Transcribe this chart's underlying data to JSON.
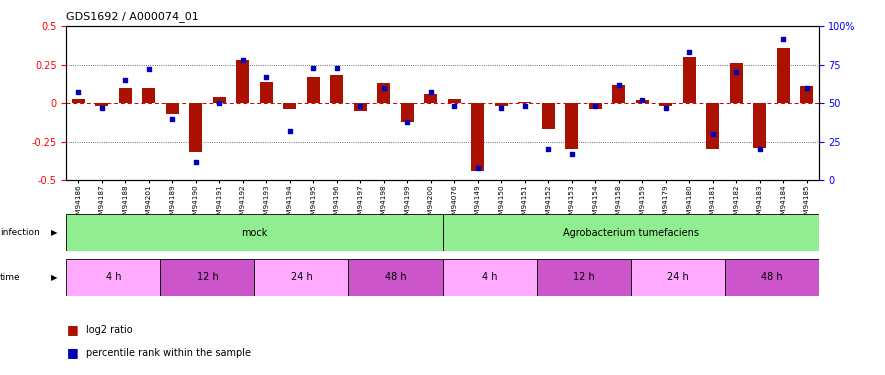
{
  "title": "GDS1692 / A000074_01",
  "samples": [
    "GSM94186",
    "GSM94187",
    "GSM94188",
    "GSM94201",
    "GSM94189",
    "GSM94190",
    "GSM94191",
    "GSM94192",
    "GSM94193",
    "GSM94194",
    "GSM94195",
    "GSM94196",
    "GSM94197",
    "GSM94198",
    "GSM94199",
    "GSM94200",
    "GSM94076",
    "GSM94149",
    "GSM94150",
    "GSM94151",
    "GSM94152",
    "GSM94153",
    "GSM94154",
    "GSM94158",
    "GSM94159",
    "GSM94179",
    "GSM94180",
    "GSM94181",
    "GSM94182",
    "GSM94183",
    "GSM94184",
    "GSM94185"
  ],
  "log2_ratio": [
    0.03,
    -0.02,
    0.1,
    0.1,
    -0.07,
    -0.32,
    0.04,
    0.28,
    0.14,
    -0.04,
    0.17,
    0.18,
    -0.05,
    0.13,
    -0.12,
    0.06,
    0.03,
    -0.44,
    -0.02,
    0.01,
    -0.17,
    -0.3,
    -0.04,
    0.12,
    0.02,
    -0.02,
    0.3,
    -0.3,
    0.26,
    -0.29,
    0.36,
    0.11
  ],
  "percentile_rank": [
    57,
    47,
    65,
    72,
    40,
    12,
    50,
    78,
    67,
    32,
    73,
    73,
    48,
    60,
    38,
    57,
    48,
    8,
    47,
    48,
    20,
    17,
    48,
    62,
    52,
    47,
    83,
    30,
    70,
    20,
    92,
    60
  ],
  "infection_groups": [
    {
      "label": "mock",
      "start": 0,
      "end": 15,
      "color": "#90ee90"
    },
    {
      "label": "Agrobacterium tumefaciens",
      "start": 16,
      "end": 31,
      "color": "#90ee90"
    }
  ],
  "time_groups": [
    {
      "label": "4 h",
      "start": 0,
      "end": 3,
      "color": "#ffaaff"
    },
    {
      "label": "12 h",
      "start": 4,
      "end": 7,
      "color": "#cc55cc"
    },
    {
      "label": "24 h",
      "start": 8,
      "end": 11,
      "color": "#ffaaff"
    },
    {
      "label": "48 h",
      "start": 12,
      "end": 15,
      "color": "#cc55cc"
    },
    {
      "label": "4 h",
      "start": 16,
      "end": 19,
      "color": "#ffaaff"
    },
    {
      "label": "12 h",
      "start": 20,
      "end": 23,
      "color": "#cc55cc"
    },
    {
      "label": "24 h",
      "start": 24,
      "end": 27,
      "color": "#ffaaff"
    },
    {
      "label": "48 h",
      "start": 28,
      "end": 31,
      "color": "#cc55cc"
    }
  ],
  "bar_color": "#aa1100",
  "dot_color": "#0000bb",
  "zero_line_color": "#cc0000",
  "bg_color": "#ffffff",
  "ylim": [
    -0.5,
    0.5
  ],
  "yticks_left": [
    -0.5,
    -0.25,
    0.0,
    0.25,
    0.5
  ],
  "yticks_right_pct": [
    0,
    25,
    50,
    75,
    100
  ],
  "hlines": [
    -0.25,
    0.25
  ]
}
